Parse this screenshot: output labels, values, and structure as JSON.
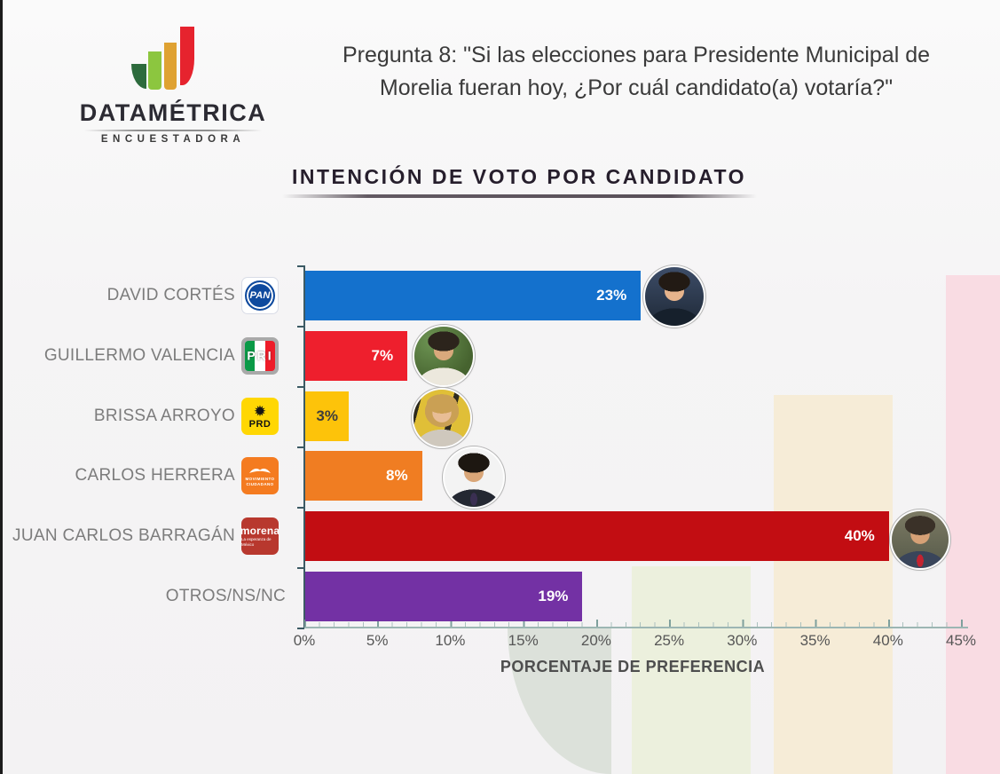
{
  "brand": {
    "name": "DATAMÉTRICA",
    "subtitle": "ENCUESTADORA"
  },
  "question": {
    "line1": "Pregunta 8: \"Si las elecciones para Presidente Municipal de",
    "line2": "Morelia fueran hoy, ¿Por cuál candidato(a) votaría?\""
  },
  "chart_title": "INTENCIÓN DE VOTO POR CANDIDATO",
  "chart_data": {
    "type": "bar",
    "orientation": "horizontal",
    "title": "INTENCIÓN DE VOTO POR CANDIDATO",
    "categories": [
      "DAVID CORTÉS",
      "GUILLERMO VALENCIA",
      "BRISSA ARROYO",
      "CARLOS HERRERA",
      "JUAN CARLOS BARRAGÁN",
      "OTROS/NS/NC"
    ],
    "values": [
      23,
      7,
      3,
      8,
      40,
      19
    ],
    "labels": [
      "23%",
      "7%",
      "3%",
      "8%",
      "40%",
      "19%"
    ],
    "parties": [
      "PAN",
      "PRI",
      "PRD",
      "MOVIMIENTO CIUDADANO",
      "MORENA",
      ""
    ],
    "bar_colors": [
      "#1471cd",
      "#ee1f2d",
      "#fdc30a",
      "#f07d22",
      "#c20d12",
      "#7331a4"
    ],
    "value_label_colors": [
      "#ffffff",
      "#ffffff",
      "#3d3d3d",
      "#ffffff",
      "#ffffff",
      "#ffffff"
    ],
    "xlabel": "PORCENTAJE DE PREFERENCIA",
    "x_ticks": [
      "0%",
      "5%",
      "10%",
      "15%",
      "20%",
      "25%",
      "30%",
      "35%",
      "40%",
      "45%"
    ],
    "xlim": [
      0,
      45
    ],
    "grid": false,
    "legend": false,
    "photo_alts": [
      "DAVID CORTÉS",
      "GUILLERMO VALENCIA",
      "BRISSA ARROYO",
      "CARLOS HERRERA",
      "JUAN CARLOS BARRAGÁN"
    ]
  },
  "party_logos": {
    "pan": {
      "text": "PAN"
    },
    "pri": {
      "text": "PRI"
    },
    "prd": {
      "text": "PRD",
      "sun": "✹"
    },
    "mc": {
      "line1": "MOVIMIENTO",
      "line2": "CIUDADANO"
    },
    "morena": {
      "text": "morena",
      "subtext": "La esperanza de México"
    }
  },
  "background_bands": [
    {
      "color": "#dce1da"
    },
    {
      "color": "#ecf0dd"
    },
    {
      "color": "#f6ecd7"
    },
    {
      "color": "#f9dce3"
    }
  ]
}
